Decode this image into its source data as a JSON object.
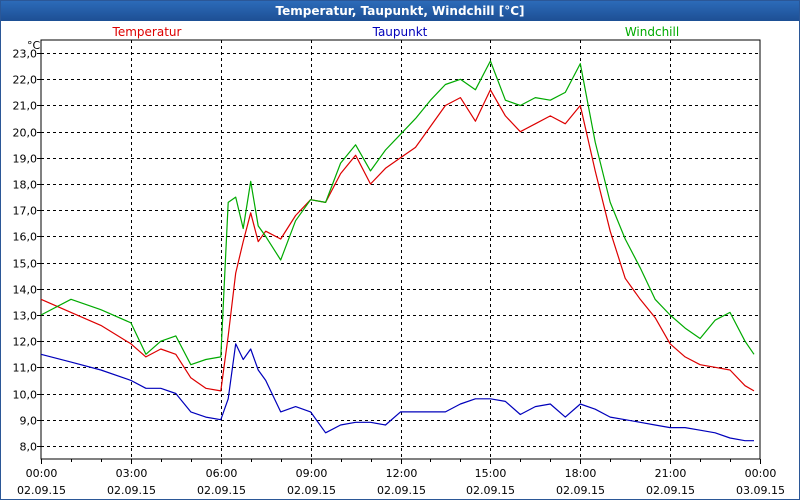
{
  "window": {
    "title": "Temperatur, Taupunkt, Windchill [°C]"
  },
  "chart_data": {
    "type": "line",
    "title": "Temperatur, Taupunkt, Windchill [°C]",
    "ylabel": "°C",
    "ylim": [
      7.5,
      23.5
    ],
    "y_ticks": [
      "8,0",
      "9,0",
      "10,0",
      "11,0",
      "12,0",
      "13,0",
      "14,0",
      "15,0",
      "16,0",
      "17,0",
      "18,0",
      "19,0",
      "20,0",
      "21,0",
      "22,0",
      "23,0"
    ],
    "x_ticks": [
      {
        "time": "00:00",
        "date": "02.09.15"
      },
      {
        "time": "03:00",
        "date": "02.09.15"
      },
      {
        "time": "06:00",
        "date": "02.09.15"
      },
      {
        "time": "09:00",
        "date": "02.09.15"
      },
      {
        "time": "12:00",
        "date": "02.09.15"
      },
      {
        "time": "15:00",
        "date": "02.09.15"
      },
      {
        "time": "18:00",
        "date": "02.09.15"
      },
      {
        "time": "21:00",
        "date": "02.09.15"
      },
      {
        "time": "00:00",
        "date": "03.09.15"
      }
    ],
    "x_hours": [
      0,
      1,
      2,
      3,
      3.5,
      4,
      4.5,
      5,
      5.5,
      6,
      6.25,
      6.5,
      6.75,
      7,
      7.25,
      7.5,
      8,
      8.5,
      9,
      9.5,
      10,
      10.5,
      11,
      11.5,
      12,
      12.5,
      13,
      13.5,
      14,
      14.5,
      15,
      15.5,
      16,
      16.5,
      17,
      17.5,
      18,
      18.5,
      19,
      19.5,
      20,
      20.5,
      21,
      21.5,
      22,
      22.5,
      23,
      23.5,
      23.8
    ],
    "series": [
      {
        "name": "Temperatur",
        "color": "#dd0000",
        "values": [
          13.6,
          13.1,
          12.6,
          11.9,
          11.4,
          11.7,
          11.5,
          10.6,
          10.2,
          10.1,
          12.2,
          14.6,
          15.8,
          16.9,
          15.8,
          16.2,
          15.9,
          16.8,
          17.4,
          17.3,
          18.4,
          19.1,
          18.0,
          18.6,
          19.0,
          19.4,
          20.2,
          21.0,
          21.3,
          20.4,
          21.6,
          20.6,
          20.0,
          20.3,
          20.6,
          20.3,
          21.0,
          18.5,
          16.2,
          14.4,
          13.6,
          12.9,
          11.9,
          11.4,
          11.1,
          11.0,
          10.9,
          10.3,
          10.1
        ]
      },
      {
        "name": "Taupunkt",
        "color": "#0000bb",
        "values": [
          11.5,
          11.2,
          10.9,
          10.5,
          10.2,
          10.2,
          10.0,
          9.3,
          9.1,
          9.0,
          9.8,
          11.9,
          11.3,
          11.7,
          10.9,
          10.5,
          9.3,
          9.5,
          9.3,
          8.5,
          8.8,
          8.9,
          8.9,
          8.8,
          9.3,
          9.3,
          9.3,
          9.3,
          9.6,
          9.8,
          9.8,
          9.7,
          9.2,
          9.5,
          9.6,
          9.1,
          9.6,
          9.4,
          9.1,
          9.0,
          8.9,
          8.8,
          8.7,
          8.7,
          8.6,
          8.5,
          8.3,
          8.2,
          8.2
        ]
      },
      {
        "name": "Windchill",
        "color": "#00aa00",
        "values": [
          13.0,
          13.6,
          13.2,
          12.7,
          11.5,
          12.0,
          12.2,
          11.1,
          11.3,
          11.4,
          17.3,
          17.5,
          16.3,
          18.1,
          16.4,
          16.0,
          15.1,
          16.6,
          17.4,
          17.3,
          18.8,
          19.5,
          18.5,
          19.3,
          19.9,
          20.5,
          21.2,
          21.8,
          22.0,
          21.6,
          22.7,
          21.2,
          21.0,
          21.3,
          21.2,
          21.5,
          22.6,
          19.6,
          17.3,
          15.9,
          14.8,
          13.6,
          13.0,
          12.5,
          12.1,
          12.8,
          13.1,
          12.0,
          11.5
        ]
      }
    ]
  }
}
